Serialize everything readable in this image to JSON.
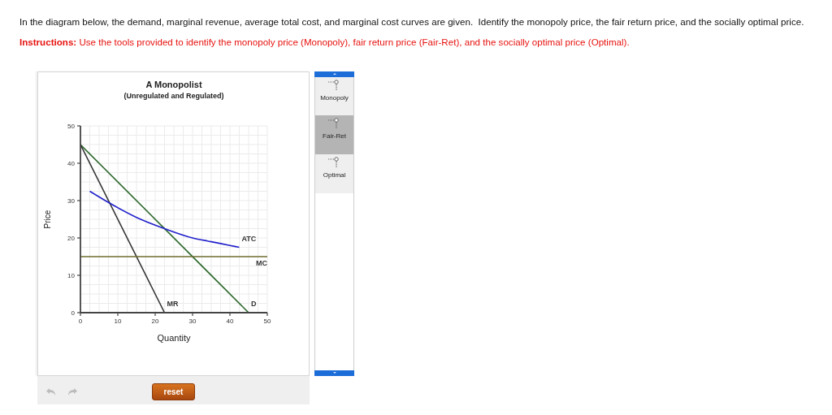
{
  "chart_data": {
    "type": "line",
    "title": "A Monopolist",
    "subtitle": "(Unregulated and Regulated)",
    "xlabel": "Quantity",
    "ylabel": "Price",
    "annotations": [
      "In the diagram below, the demand, marginal revenue, average total cost, and marginal cost curves are given.  Identify the monopoly price, the fair return price, and the socially optimal price.",
      "Instructions: Use the tools provided to identify the monopoly price (Monopoly), fair return price (Fair-Ret), and the socially optimal price (Optimal).",
      "Monopoly",
      "Fair-Ret",
      "Optimal",
      "reset"
    ],
    "series": [
      {
        "name": "D",
        "color": "#2f6a2f",
        "x": [
          0,
          45
        ],
        "values": [
          45,
          0
        ]
      },
      {
        "name": "MR",
        "color": "#333333",
        "x": [
          0,
          22.5
        ],
        "values": [
          45,
          0
        ]
      },
      {
        "name": "ATC",
        "color": "#2121cc",
        "x": [
          2.5,
          7.5,
          15,
          22.5,
          30,
          35,
          40,
          42.5
        ],
        "values": [
          32.5,
          29.5,
          25.5,
          22.5,
          20,
          19,
          18,
          17.5
        ]
      },
      {
        "name": "MC",
        "color": "#6e6e30",
        "x": [
          0,
          50
        ],
        "values": [
          15,
          15
        ]
      }
    ],
    "xlim": [
      0,
      50
    ],
    "ylim": [
      0,
      50
    ],
    "xticks": [
      0,
      {
        "value": 2.5,
        "label": null
      },
      {
        "value": 5,
        "label": null
      },
      {
        "value": 7.5,
        "label": null
      },
      10,
      {
        "value": 12.5,
        "label": null
      },
      {
        "value": 15,
        "label": null
      },
      {
        "value": 17.5,
        "label": null
      },
      20,
      {
        "value": 22.5,
        "label": null
      },
      {
        "value": 25,
        "label": null
      },
      {
        "value": 27.5,
        "label": null
      },
      30,
      {
        "value": 32.5,
        "label": null
      },
      {
        "value": 35,
        "label": null
      },
      {
        "value": 37.5,
        "label": null
      },
      40,
      {
        "value": 42.5,
        "label": null
      },
      {
        "value": 45,
        "label": null
      },
      {
        "value": 47.5,
        "label": null
      },
      50
    ],
    "yticks": [
      0,
      {
        "value": 2.5,
        "label": null
      },
      {
        "value": 5,
        "label": null
      },
      {
        "value": 7.5,
        "label": null
      },
      10,
      {
        "value": 12.5,
        "label": null
      },
      {
        "value": 15,
        "label": null
      },
      {
        "value": 17.5,
        "label": null
      },
      20,
      {
        "value": 22.5,
        "label": null
      },
      {
        "value": 25,
        "label": null
      },
      {
        "value": 27.5,
        "label": null
      },
      30,
      {
        "value": 32.5,
        "label": null
      },
      {
        "value": 35,
        "label": null
      },
      {
        "value": 37.5,
        "label": null
      },
      40,
      {
        "value": 42.5,
        "label": null
      },
      {
        "value": 45,
        "label": null
      },
      {
        "value": 47.5,
        "label": null
      },
      50
    ],
    "grid": true,
    "marker": "none",
    "line_style": "solid"
  }
}
